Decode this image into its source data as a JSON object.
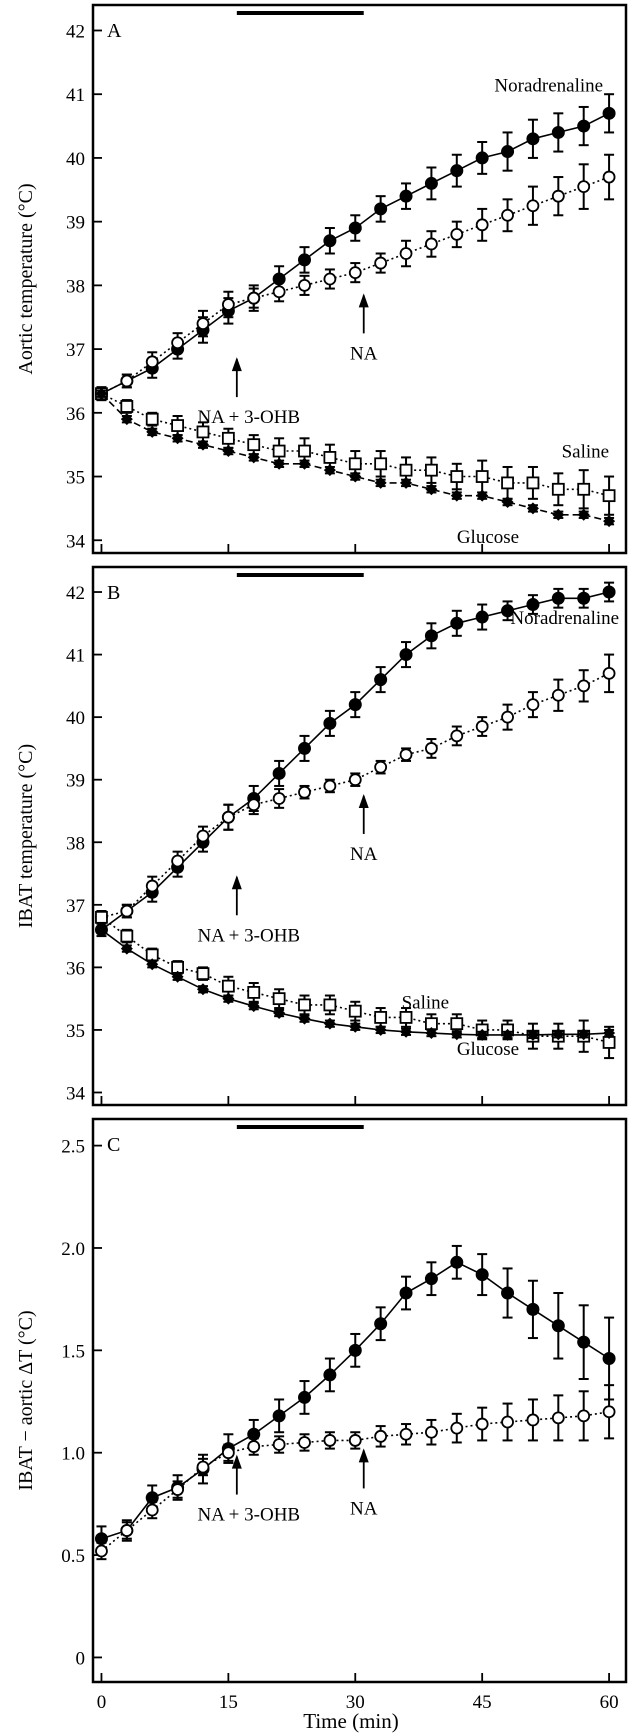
{
  "x_axis": {
    "label": "Time (min)",
    "ticks": [
      0,
      15,
      30,
      45,
      60
    ],
    "range": [
      -1,
      62
    ]
  },
  "chart_data": [
    {
      "type": "line",
      "panel_label": "A",
      "ylabel": "Aortic temperature (°C)",
      "ylim": [
        33.8,
        42.4
      ],
      "yticks": [
        34,
        35,
        36,
        37,
        38,
        39,
        40,
        41,
        42
      ],
      "bar": [
        16,
        31
      ],
      "series": [
        {
          "name": "Noradrenaline",
          "marker": "filled-circle",
          "line": "solid",
          "x": [
            0,
            3,
            6,
            9,
            12,
            15,
            18,
            21,
            24,
            27,
            30,
            33,
            36,
            39,
            42,
            45,
            48,
            51,
            54,
            57,
            60
          ],
          "y": [
            36.3,
            36.5,
            36.7,
            37.0,
            37.3,
            37.6,
            37.8,
            38.1,
            38.4,
            38.7,
            38.9,
            39.2,
            39.4,
            39.6,
            39.8,
            40.0,
            40.1,
            40.3,
            40.4,
            40.5,
            40.7
          ],
          "err": [
            0.1,
            0.1,
            0.15,
            0.15,
            0.2,
            0.2,
            0.2,
            0.2,
            0.2,
            0.2,
            0.2,
            0.2,
            0.2,
            0.25,
            0.25,
            0.25,
            0.3,
            0.3,
            0.3,
            0.3,
            0.3
          ]
        },
        {
          "name": "",
          "marker": "open-circle",
          "line": "dotted",
          "x": [
            0,
            3,
            6,
            9,
            12,
            15,
            18,
            21,
            24,
            27,
            30,
            33,
            36,
            39,
            42,
            45,
            48,
            51,
            54,
            57,
            60
          ],
          "y": [
            36.3,
            36.5,
            36.8,
            37.1,
            37.4,
            37.7,
            37.8,
            37.9,
            38.0,
            38.1,
            38.2,
            38.35,
            38.5,
            38.65,
            38.8,
            38.95,
            39.1,
            39.25,
            39.4,
            39.55,
            39.7
          ],
          "err": [
            0.1,
            0.1,
            0.15,
            0.15,
            0.2,
            0.2,
            0.15,
            0.15,
            0.15,
            0.15,
            0.15,
            0.15,
            0.2,
            0.2,
            0.2,
            0.25,
            0.25,
            0.3,
            0.3,
            0.35,
            0.35
          ]
        },
        {
          "name": "Saline",
          "marker": "open-square",
          "line": "dotted",
          "x": [
            0,
            3,
            6,
            9,
            12,
            15,
            18,
            21,
            24,
            27,
            30,
            33,
            36,
            39,
            42,
            45,
            48,
            51,
            54,
            57,
            60
          ],
          "y": [
            36.3,
            36.1,
            35.9,
            35.8,
            35.7,
            35.6,
            35.5,
            35.4,
            35.4,
            35.3,
            35.2,
            35.2,
            35.1,
            35.1,
            35.0,
            35.0,
            34.9,
            34.9,
            34.8,
            34.8,
            34.7
          ],
          "err": [
            0.1,
            0.1,
            0.1,
            0.15,
            0.15,
            0.15,
            0.15,
            0.2,
            0.2,
            0.2,
            0.2,
            0.2,
            0.2,
            0.2,
            0.2,
            0.25,
            0.25,
            0.25,
            0.25,
            0.3,
            0.3
          ]
        },
        {
          "name": "Glucose",
          "marker": "filled-diamond",
          "line": "dashed",
          "x": [
            0,
            3,
            6,
            9,
            12,
            15,
            18,
            21,
            24,
            27,
            30,
            33,
            36,
            39,
            42,
            45,
            48,
            51,
            54,
            57,
            60
          ],
          "y": [
            36.3,
            35.9,
            35.7,
            35.6,
            35.5,
            35.4,
            35.3,
            35.2,
            35.2,
            35.1,
            35.0,
            34.9,
            34.9,
            34.8,
            34.7,
            34.7,
            34.6,
            34.5,
            34.4,
            34.4,
            34.3
          ],
          "err": [
            0.05,
            0.05,
            0.05,
            0.05,
            0.05,
            0.05,
            0.05,
            0.05,
            0.05,
            0.05,
            0.05,
            0.05,
            0.05,
            0.05,
            0.05,
            0.05,
            0.05,
            0.05,
            0.05,
            0.05,
            0.05
          ]
        }
      ],
      "annotations": [
        {
          "text": "NA + 3-OHB",
          "x": 16,
          "y": 37.0
        },
        {
          "text": "NA",
          "x": 31,
          "y": 38.0
        }
      ]
    },
    {
      "type": "line",
      "panel_label": "B",
      "ylabel": "IBAT temperature (°C)",
      "ylim": [
        33.8,
        42.4
      ],
      "yticks": [
        34,
        35,
        36,
        37,
        38,
        39,
        40,
        41,
        42
      ],
      "bar": [
        16,
        31
      ],
      "series": [
        {
          "name": "Noradrenaline",
          "marker": "filled-circle",
          "line": "solid",
          "x": [
            0,
            3,
            6,
            9,
            12,
            15,
            18,
            21,
            24,
            27,
            30,
            33,
            36,
            39,
            42,
            45,
            48,
            51,
            54,
            57,
            60
          ],
          "y": [
            36.6,
            36.9,
            37.2,
            37.6,
            38.0,
            38.4,
            38.7,
            39.1,
            39.5,
            39.9,
            40.2,
            40.6,
            41.0,
            41.3,
            41.5,
            41.6,
            41.7,
            41.8,
            41.9,
            41.9,
            42.0
          ],
          "err": [
            0.1,
            0.1,
            0.15,
            0.15,
            0.15,
            0.2,
            0.2,
            0.2,
            0.2,
            0.2,
            0.2,
            0.2,
            0.2,
            0.2,
            0.2,
            0.2,
            0.15,
            0.15,
            0.15,
            0.15,
            0.15
          ]
        },
        {
          "name": "",
          "marker": "open-circle",
          "line": "dotted",
          "x": [
            0,
            3,
            6,
            9,
            12,
            15,
            18,
            21,
            24,
            27,
            30,
            33,
            36,
            39,
            42,
            45,
            48,
            51,
            54,
            57,
            60
          ],
          "y": [
            36.8,
            36.9,
            37.3,
            37.7,
            38.1,
            38.4,
            38.6,
            38.7,
            38.8,
            38.9,
            39.0,
            39.2,
            39.4,
            39.5,
            39.7,
            39.85,
            40.0,
            40.2,
            40.35,
            40.5,
            40.7
          ],
          "err": [
            0.1,
            0.1,
            0.15,
            0.15,
            0.15,
            0.2,
            0.15,
            0.15,
            0.1,
            0.1,
            0.1,
            0.1,
            0.1,
            0.15,
            0.15,
            0.15,
            0.2,
            0.2,
            0.25,
            0.25,
            0.3
          ]
        },
        {
          "name": "Saline",
          "marker": "open-square",
          "line": "dotted",
          "x": [
            0,
            3,
            6,
            9,
            12,
            15,
            18,
            21,
            24,
            27,
            30,
            33,
            36,
            39,
            42,
            45,
            48,
            51,
            54,
            57,
            60
          ],
          "y": [
            36.8,
            36.5,
            36.2,
            36.0,
            35.9,
            35.7,
            35.6,
            35.5,
            35.4,
            35.4,
            35.3,
            35.2,
            35.2,
            35.1,
            35.1,
            35.0,
            35.0,
            34.9,
            34.9,
            34.9,
            34.8
          ],
          "err": [
            0.1,
            0.1,
            0.1,
            0.1,
            0.1,
            0.15,
            0.15,
            0.15,
            0.15,
            0.15,
            0.15,
            0.15,
            0.15,
            0.15,
            0.15,
            0.15,
            0.15,
            0.2,
            0.2,
            0.25,
            0.25
          ]
        },
        {
          "name": "Glucose",
          "marker": "filled-diamond",
          "line": "solid",
          "x": [
            0,
            3,
            6,
            9,
            12,
            15,
            18,
            21,
            24,
            27,
            30,
            33,
            36,
            39,
            42,
            45,
            48,
            51,
            54,
            57,
            60
          ],
          "y": [
            36.6,
            36.3,
            36.05,
            35.85,
            35.65,
            35.5,
            35.38,
            35.27,
            35.18,
            35.1,
            35.05,
            35.0,
            34.97,
            34.95,
            34.93,
            34.92,
            34.92,
            34.92,
            34.93,
            34.93,
            34.95
          ],
          "err": [
            0.05,
            0.05,
            0.05,
            0.05,
            0.05,
            0.05,
            0.05,
            0.05,
            0.05,
            0.05,
            0.05,
            0.05,
            0.05,
            0.05,
            0.05,
            0.05,
            0.05,
            0.05,
            0.05,
            0.05,
            0.05
          ]
        }
      ],
      "annotations": [
        {
          "text": "NA + 3-OHB",
          "x": 16,
          "y": 37.6
        },
        {
          "text": "NA",
          "x": 31,
          "y": 38.9
        }
      ]
    },
    {
      "type": "line",
      "panel_label": "C",
      "ylabel": "IBAT − aortic ΔT (°C)",
      "ylim": [
        -0.12,
        2.63
      ],
      "yticks": [
        0,
        0.5,
        1.0,
        1.5,
        2.0,
        2.5
      ],
      "ytick_labels": [
        "0",
        "0.5",
        "1.0",
        "1.5",
        "2.0",
        "2.5"
      ],
      "bar": [
        16,
        31
      ],
      "series": [
        {
          "name": "",
          "marker": "filled-circle",
          "line": "solid",
          "x": [
            0,
            3,
            6,
            9,
            12,
            15,
            18,
            21,
            24,
            27,
            30,
            33,
            36,
            39,
            42,
            45,
            48,
            51,
            54,
            57,
            60
          ],
          "y": [
            0.58,
            0.62,
            0.78,
            0.83,
            0.92,
            1.02,
            1.09,
            1.18,
            1.27,
            1.38,
            1.5,
            1.63,
            1.78,
            1.85,
            1.93,
            1.87,
            1.78,
            1.7,
            1.62,
            1.54,
            1.46
          ],
          "err": [
            0.06,
            0.05,
            0.06,
            0.06,
            0.07,
            0.07,
            0.07,
            0.08,
            0.08,
            0.08,
            0.08,
            0.08,
            0.08,
            0.08,
            0.08,
            0.1,
            0.12,
            0.14,
            0.16,
            0.18,
            0.2
          ]
        },
        {
          "name": "",
          "marker": "open-circle",
          "line": "dotted",
          "x": [
            0,
            3,
            6,
            9,
            12,
            15,
            18,
            21,
            24,
            27,
            30,
            33,
            36,
            39,
            42,
            45,
            48,
            51,
            54,
            57,
            60
          ],
          "y": [
            0.52,
            0.62,
            0.72,
            0.82,
            0.93,
            1.0,
            1.03,
            1.04,
            1.05,
            1.06,
            1.06,
            1.08,
            1.09,
            1.1,
            1.12,
            1.14,
            1.15,
            1.16,
            1.17,
            1.18,
            1.2
          ],
          "err": [
            0.04,
            0.04,
            0.04,
            0.04,
            0.04,
            0.04,
            0.04,
            0.04,
            0.04,
            0.04,
            0.04,
            0.05,
            0.05,
            0.06,
            0.07,
            0.08,
            0.09,
            0.1,
            0.11,
            0.12,
            0.13
          ]
        }
      ],
      "annotations": [
        {
          "text": "NA + 3-OHB",
          "x": 16,
          "y": 1.03
        },
        {
          "text": "NA",
          "x": 31,
          "y": 1.06
        }
      ]
    }
  ]
}
